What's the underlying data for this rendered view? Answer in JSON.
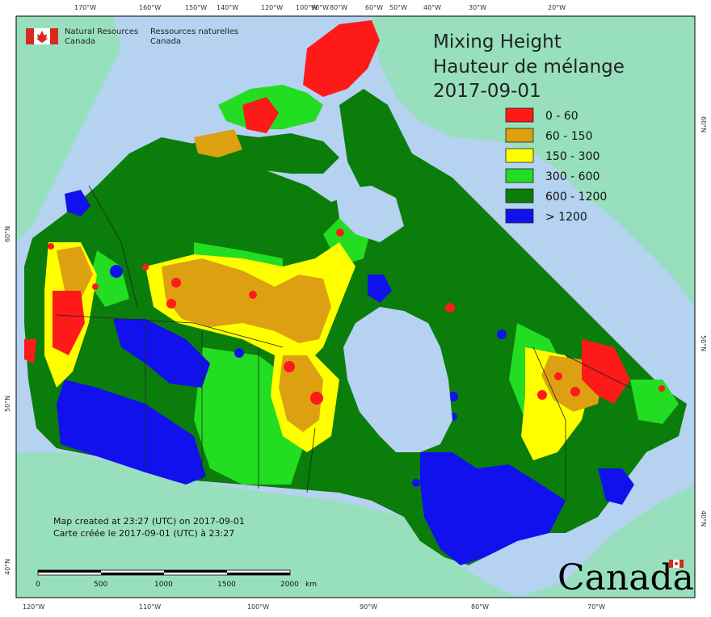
{
  "map": {
    "title_en": "Mixing Height",
    "title_fr": "Hauteur de mélange",
    "date": "2017-09-01",
    "legend": [
      {
        "label": "0 - 60",
        "color": "#ff1a1a"
      },
      {
        "label": "60 - 150",
        "color": "#dda010"
      },
      {
        "label": "150 - 300",
        "color": "#ffff00"
      },
      {
        "label": "300 - 600",
        "color": "#22dd22"
      },
      {
        "label": "600 - 1200",
        "color": "#0a7d0a"
      },
      {
        "label": "> 1200",
        "color": "#1111ee"
      }
    ],
    "colors": {
      "ocean": "#b5d2f1",
      "foreign_land": "#98e0bd",
      "boundary": "#222222"
    },
    "created_en": "Map created at 23:27 (UTC) on 2017-09-01",
    "created_fr": "Carte créée le 2017-09-01 (UTC) à 23:27",
    "scale": {
      "ticks": [
        "0",
        "500",
        "1000",
        "1500",
        "2000"
      ],
      "unit": "km"
    },
    "graticule": {
      "top": [
        "170°W",
        "160°W",
        "150°W",
        "140°W",
        "120°W",
        "100°W",
        "90°W",
        "80°W",
        "60°W",
        "50°W",
        "40°W",
        "30°W",
        "20°W"
      ],
      "bottom": [
        "120°W",
        "110°W",
        "100°W",
        "90°W",
        "80°W",
        "70°W"
      ],
      "left": [
        "60°N",
        "50°N",
        "40°N"
      ],
      "right": [
        "60°N",
        "50°N",
        "40°N"
      ]
    }
  },
  "agency": {
    "name_en_1": "Natural Resources",
    "name_en_2": "Canada",
    "name_fr_1": "Ressources naturelles",
    "name_fr_2": "Canada"
  },
  "wordmark": "Canada"
}
